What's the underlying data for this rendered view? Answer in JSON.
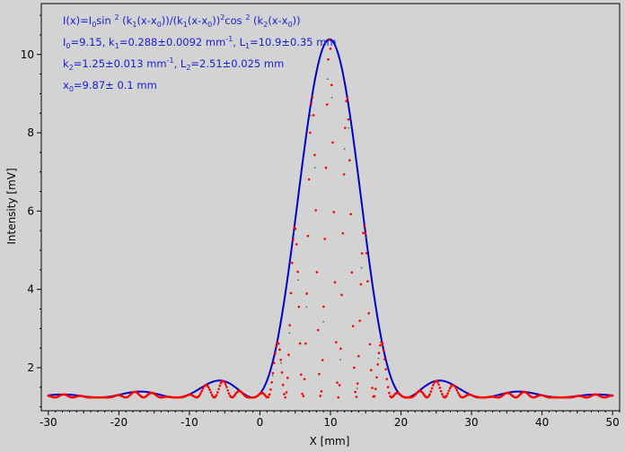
{
  "chart_data": {
    "type": "scatter",
    "xlabel": "X [mm]",
    "ylabel": "Intensity [mV]",
    "xlim": [
      -31,
      51
    ],
    "ylim": [
      0.9,
      11.3
    ],
    "xticks": [
      -30,
      -20,
      -10,
      0,
      10,
      20,
      30,
      40,
      50
    ],
    "yticks": [
      2,
      4,
      6,
      8,
      10
    ],
    "grid": false,
    "annotation": {
      "line1": {
        "p1": "I(x)=I",
        "s1": "0",
        "p2": "sin ",
        "sup1": "2",
        "p3": " (k",
        "s2": "1",
        "p4": "(x-x",
        "s3": "0",
        "p5": "))/(k",
        "s4": "1",
        "p6": "(x-x",
        "s5": "0",
        "p7": "))",
        "sup2": "2",
        "p8": "cos ",
        "sup3": "2",
        "p9": " (k",
        "s6": "2",
        "p10": "(x-x",
        "s7": "0",
        "p11": "))"
      },
      "line2": {
        "p1": "I",
        "s1": "0",
        "p2": "=9.15,  k",
        "s2": "1",
        "p3": "=0.288±0.0092 mm",
        "sup1": "-1",
        "p4": ",   L",
        "s3": "1",
        "p5": "=10.9±0.35 mm"
      },
      "line3": {
        "p1": "k",
        "s1": "2",
        "p2": "=1.25±0.013 mm",
        "sup1": "-1",
        "p3": ",   L",
        "s2": "2",
        "p4": "=2.51±0.025 mm"
      },
      "line4": {
        "p1": "x",
        "s1": "0",
        "p2": "=9.87±  0.1 mm"
      }
    },
    "model": {
      "I0": 9.15,
      "k1": 0.288,
      "k2": 1.25,
      "x0": 9.87,
      "baseline": 1.24
    },
    "series": [
      {
        "color": "#0000cc",
        "style": "line",
        "x_start": -30,
        "x_end": 50,
        "x_step": 0.1
      },
      {
        "color": "#ff0000",
        "style": "dots",
        "x_start": -30,
        "x_end": 50,
        "x_step": 0.16
      },
      {
        "color": "#008000",
        "style": "dots",
        "x_start": -30,
        "x_end": 50,
        "x_step": 0.6
      }
    ]
  }
}
